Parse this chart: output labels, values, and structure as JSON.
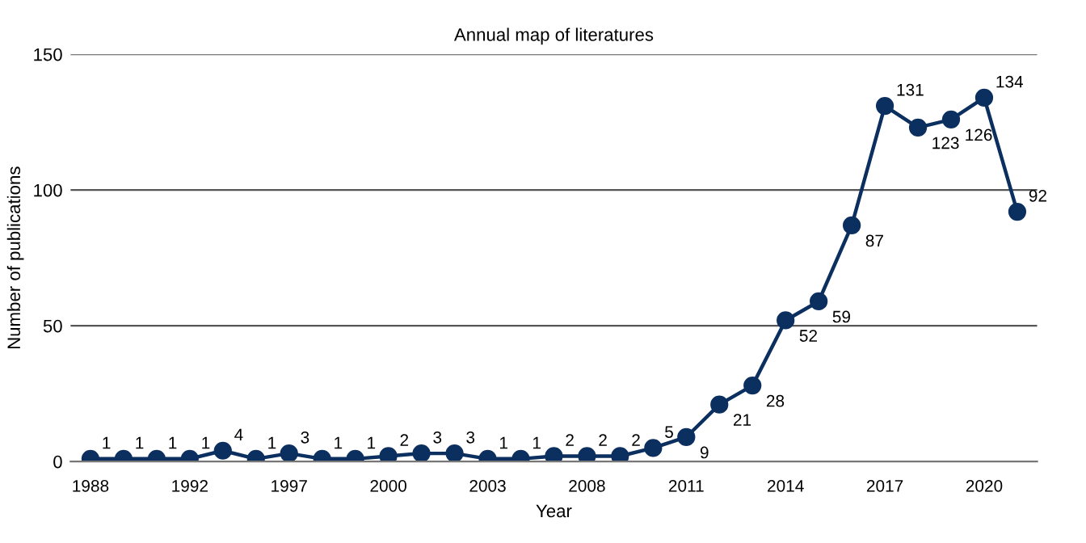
{
  "chart_data": {
    "type": "line",
    "title": "Annual map of literatures",
    "xlabel": "Year",
    "ylabel": "Number of publications",
    "categories": [
      "1988",
      null,
      null,
      "1992",
      null,
      null,
      "1997",
      null,
      null,
      "2000",
      null,
      null,
      "2003",
      null,
      null,
      "2008",
      null,
      null,
      "2011",
      null,
      null,
      "2014",
      null,
      null,
      "2017",
      null,
      null,
      "2020",
      null
    ],
    "series": [
      {
        "color": "#0b2f5f",
        "values": [
          1,
          1,
          1,
          1,
          4,
          1,
          3,
          1,
          1,
          2,
          3,
          3,
          1,
          1,
          2,
          2,
          2,
          5,
          9,
          21,
          28,
          52,
          59,
          87,
          131,
          123,
          126,
          134,
          92
        ]
      }
    ],
    "ylim": [
      0,
      150
    ],
    "yticks": [
      0,
      50,
      100,
      150
    ],
    "grid": "y",
    "marker": "circle",
    "line_style": "solid",
    "data_labels": true,
    "legend": false
  }
}
